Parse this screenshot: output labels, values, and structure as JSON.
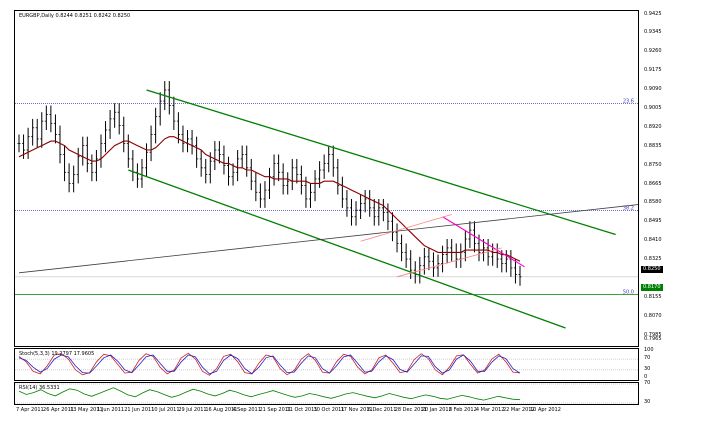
{
  "title": "EURGBP,Daily  0.8244 0.8251 0.8242 0.8250",
  "colors": {
    "price_line": "#8b0000",
    "channel": "#008000",
    "trend_black": "#404040",
    "pink": "#ff00cc",
    "salmon": "#ff8080",
    "fibo": "#4040c0",
    "current_price_bg": "#000000",
    "fibo_level_bg": "#008000",
    "stoch_main": "#cc2222",
    "stoch_signal": "#2222cc",
    "rsi": "#008000"
  },
  "chart_data": [
    {
      "type": "line",
      "title": "EURGBP,Daily  0.8244 0.8251 0.8242 0.8250",
      "ylim": [
        0.7939,
        0.9445
      ],
      "y_ticks": [
        "0.9425",
        "0.9345",
        "0.9260",
        "0.9175",
        "0.9090",
        "0.9005",
        "0.8920",
        "0.8835",
        "0.8750",
        "0.8665",
        "0.8580",
        "0.8495",
        "0.8410",
        "0.8325",
        "0.8250",
        "0.8155",
        "0.8070",
        "0.7985",
        "0.7965"
      ],
      "x_ticks": [
        "7 Apr 2011",
        "26 Apr 2011",
        "13 May 2011",
        "1 Jun 2011",
        "21 Jun 2011",
        "10 Jul 2011",
        "29 Jul 2011",
        "16 Aug 2011",
        "4 Sep 2011",
        "21 Sep 2011",
        "11 Oct 2011",
        "30 Oct 2011",
        "17 Nov 2011",
        "6 Dec 2011",
        "28 Dec 2011",
        "20 Jan 2012",
        "8 Feb 2012",
        "4 Mar 2012",
        "22 Mar 2012",
        "10 Apr 2012"
      ],
      "levels": [
        {
          "label": "23.6",
          "value": 0.9029
        },
        {
          "label": "38.2",
          "value": 0.8548
        },
        {
          "label": "50.0",
          "value": 0.817
        }
      ],
      "current_price": "0.8250",
      "level_price": "0.8170",
      "series": [
        {
          "values": [
            0.885,
            0.882,
            0.888,
            0.892,
            0.887,
            0.895,
            0.898,
            0.894,
            0.889,
            0.88,
            0.872,
            0.867,
            0.871,
            0.879,
            0.884,
            0.876,
            0.872,
            0.878,
            0.885,
            0.891,
            0.896,
            0.899,
            0.893,
            0.885,
            0.878,
            0.872,
            0.869,
            0.874,
            0.881,
            0.889,
            0.897,
            0.904,
            0.909,
            0.902,
            0.895,
            0.889,
            0.885,
            0.887,
            0.884,
            0.878,
            0.874,
            0.871,
            0.877,
            0.882,
            0.88,
            0.875,
            0.87,
            0.872,
            0.878,
            0.88,
            0.874,
            0.868,
            0.863,
            0.86,
            0.864,
            0.87,
            0.876,
            0.872,
            0.866,
            0.868,
            0.874,
            0.871,
            0.866,
            0.86,
            0.863,
            0.869,
            0.873,
            0.876,
            0.88,
            0.874,
            0.866,
            0.86,
            0.856,
            0.852,
            0.855,
            0.858,
            0.86,
            0.856,
            0.852,
            0.856,
            0.854,
            0.85,
            0.845,
            0.84,
            0.836,
            0.833,
            0.828,
            0.826,
            0.83,
            0.834,
            0.832,
            0.829,
            0.831,
            0.835,
            0.838,
            0.836,
            0.833,
            0.836,
            0.842,
            0.846,
            0.84,
            0.836,
            0.838,
            0.834,
            0.836,
            0.833,
            0.831,
            0.833,
            0.829,
            0.826,
            0.825
          ]
        },
        {
          "values": [
            0.879,
            0.88,
            0.881,
            0.882,
            0.883,
            0.884,
            0.885,
            0.886,
            0.886,
            0.885,
            0.884,
            0.882,
            0.881,
            0.88,
            0.879,
            0.878,
            0.877,
            0.877,
            0.878,
            0.88,
            0.882,
            0.884,
            0.885,
            0.886,
            0.886,
            0.885,
            0.884,
            0.883,
            0.882,
            0.882,
            0.883,
            0.885,
            0.887,
            0.888,
            0.888,
            0.887,
            0.886,
            0.885,
            0.884,
            0.883,
            0.882,
            0.88,
            0.879,
            0.878,
            0.877,
            0.876,
            0.876,
            0.875,
            0.874,
            0.874,
            0.873,
            0.873,
            0.872,
            0.871,
            0.87,
            0.87,
            0.869,
            0.869,
            0.869,
            0.869,
            0.868,
            0.868,
            0.868,
            0.868,
            0.867,
            0.867,
            0.867,
            0.868,
            0.868,
            0.868,
            0.867,
            0.866,
            0.865,
            0.864,
            0.863,
            0.862,
            0.861,
            0.86,
            0.859,
            0.858,
            0.857,
            0.855,
            0.853,
            0.851,
            0.849,
            0.847,
            0.845,
            0.843,
            0.841,
            0.839,
            0.838,
            0.837,
            0.836,
            0.836,
            0.836,
            0.836,
            0.836,
            0.836,
            0.837,
            0.837,
            0.837,
            0.837,
            0.837,
            0.837,
            0.836,
            0.836,
            0.835,
            0.835,
            0.834,
            0.833,
            0.832
          ]
        }
      ]
    },
    {
      "type": "line",
      "title": "Stoch(5,3,3) 19.2797 17.9605",
      "ylim": [
        0,
        100
      ],
      "y_ticks": [
        "100",
        "70",
        "30",
        "0"
      ],
      "series": [
        {
          "name": "main",
          "values": [
            80,
            60,
            25,
            15,
            45,
            85,
            90,
            70,
            30,
            12,
            20,
            60,
            88,
            82,
            50,
            18,
            22,
            65,
            90,
            80,
            40,
            15,
            30,
            75,
            92,
            70,
            25,
            10,
            35,
            80,
            88,
            60,
            20,
            15,
            55,
            85,
            78,
            35,
            12,
            28,
            70,
            90,
            65,
            22,
            18,
            60,
            88,
            80,
            40,
            15,
            30,
            75,
            85,
            55,
            20,
            25,
            68,
            90,
            72,
            30,
            12,
            40,
            82,
            86,
            50,
            18,
            30,
            70,
            88,
            60,
            22,
            19
          ]
        },
        {
          "name": "signal",
          "values": [
            75,
            65,
            40,
            22,
            35,
            70,
            85,
            78,
            45,
            20,
            18,
            45,
            75,
            85,
            62,
            30,
            20,
            48,
            78,
            85,
            55,
            25,
            25,
            60,
            85,
            78,
            40,
            15,
            25,
            65,
            85,
            72,
            35,
            16,
            40,
            75,
            82,
            48,
            20,
            22,
            55,
            82,
            75,
            35,
            18,
            45,
            78,
            85,
            55,
            22,
            25,
            60,
            82,
            68,
            32,
            22,
            52,
            82,
            80,
            42,
            18,
            30,
            70,
            85,
            62,
            25,
            25,
            58,
            82,
            72,
            35,
            18
          ]
        }
      ]
    },
    {
      "type": "line",
      "title": "RSI(14) 36.5331",
      "ylim": [
        30,
        70
      ],
      "y_ticks": [
        "70",
        "30"
      ],
      "series": [
        {
          "values": [
            55,
            48,
            52,
            58,
            50,
            45,
            53,
            60,
            57,
            49,
            44,
            50,
            56,
            62,
            55,
            47,
            43,
            51,
            58,
            54,
            48,
            42,
            46,
            53,
            59,
            55,
            49,
            45,
            50,
            57,
            53,
            47,
            43,
            48,
            52,
            56,
            51,
            46,
            42,
            45,
            50,
            47,
            43,
            40,
            44,
            49,
            52,
            48,
            44,
            41,
            45,
            50,
            46,
            42,
            39,
            43,
            47,
            44,
            40,
            38,
            42,
            46,
            43,
            39,
            36,
            40,
            44,
            41,
            38,
            37
          ]
        }
      ]
    }
  ]
}
